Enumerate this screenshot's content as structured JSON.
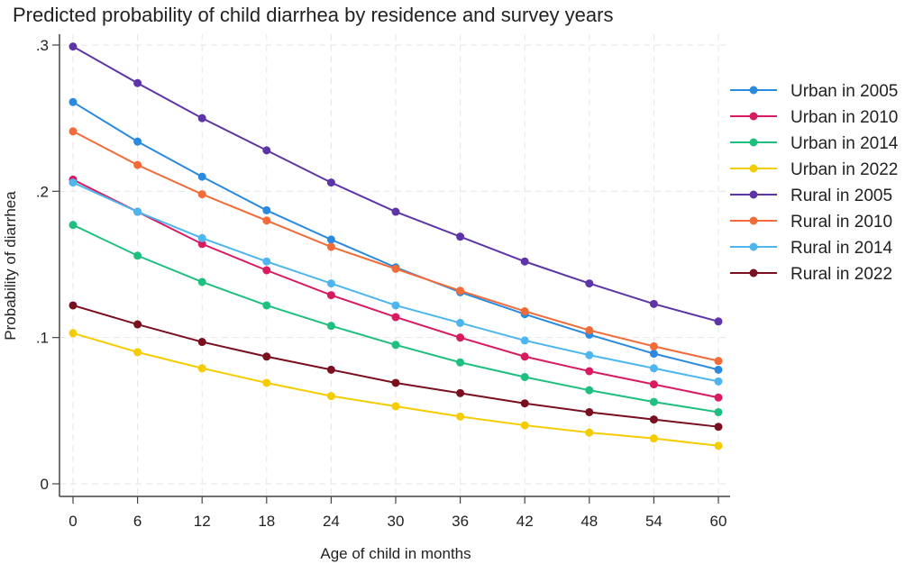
{
  "chart_data": {
    "type": "line",
    "title": "Predicted probability of child diarrhea by residence and survey years",
    "xlabel": "Age of child in months",
    "ylabel": "Probability of diarrhea",
    "x": [
      0,
      6,
      12,
      18,
      24,
      30,
      36,
      42,
      48,
      54,
      60
    ],
    "xticks": [
      "0",
      "6",
      "12",
      "18",
      "24",
      "30",
      "36",
      "42",
      "48",
      "54",
      "60"
    ],
    "yticks": [
      {
        "value": 0,
        "label": "0"
      },
      {
        "value": 0.1,
        "label": ".1"
      },
      {
        "value": 0.2,
        "label": ".2"
      },
      {
        "value": 0.3,
        "label": ".3"
      }
    ],
    "xlim": [
      -1.9,
      62
    ],
    "ylim": [
      -0.0085,
      0.313
    ],
    "grid": true,
    "legend_position": "right",
    "series": [
      {
        "name": "Urban in 2005",
        "color": "#2a8ae0",
        "values": [
          0.261,
          0.234,
          0.21,
          0.187,
          0.167,
          0.148,
          0.131,
          0.116,
          0.102,
          0.089,
          0.078
        ]
      },
      {
        "name": "Urban in 2010",
        "color": "#d81b60",
        "values": [
          0.208,
          0.186,
          0.164,
          0.146,
          0.129,
          0.114,
          0.1,
          0.087,
          0.077,
          0.068,
          0.059
        ]
      },
      {
        "name": "Urban in 2014",
        "color": "#1fbf7f",
        "values": [
          0.177,
          0.156,
          0.138,
          0.122,
          0.108,
          0.095,
          0.083,
          0.073,
          0.064,
          0.056,
          0.049
        ]
      },
      {
        "name": "Urban in 2022",
        "color": "#f5cc00",
        "values": [
          0.103,
          0.09,
          0.079,
          0.069,
          0.06,
          0.053,
          0.046,
          0.04,
          0.035,
          0.031,
          0.026
        ]
      },
      {
        "name": "Rural in 2005",
        "color": "#5e35a8",
        "values": [
          0.299,
          0.274,
          0.25,
          0.228,
          0.206,
          0.186,
          0.169,
          0.152,
          0.137,
          0.123,
          0.111
        ]
      },
      {
        "name": "Rural in 2010",
        "color": "#f26b38",
        "values": [
          0.241,
          0.218,
          0.198,
          0.18,
          0.162,
          0.147,
          0.132,
          0.118,
          0.105,
          0.094,
          0.084
        ]
      },
      {
        "name": "Rural in 2014",
        "color": "#4db6ee",
        "values": [
          0.206,
          0.186,
          0.168,
          0.152,
          0.137,
          0.122,
          0.11,
          0.098,
          0.088,
          0.079,
          0.07
        ]
      },
      {
        "name": "Rural in 2022",
        "color": "#7a0f1f",
        "values": [
          0.122,
          0.109,
          0.097,
          0.087,
          0.078,
          0.069,
          0.062,
          0.055,
          0.049,
          0.044,
          0.039
        ]
      }
    ]
  }
}
